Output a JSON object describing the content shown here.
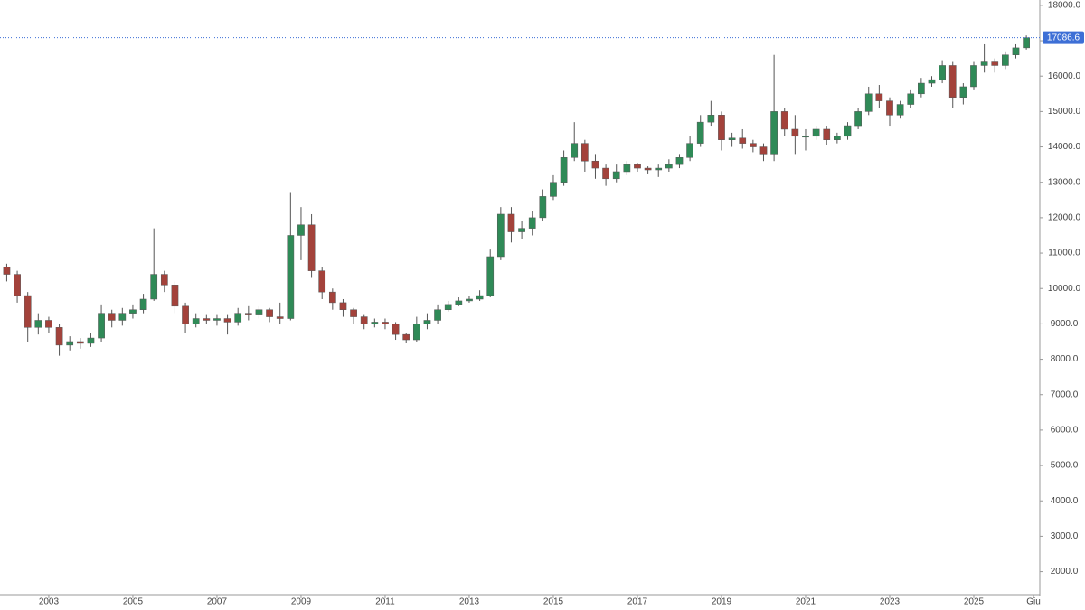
{
  "chart_data": {
    "type": "candlestick",
    "x": [
      2002,
      2002.25,
      2002.5,
      2002.75,
      2003,
      2003.25,
      2003.5,
      2003.75,
      2004,
      2004.25,
      2004.5,
      2004.75,
      2005,
      2005.25,
      2005.5,
      2005.75,
      2006,
      2006.25,
      2006.5,
      2006.75,
      2007,
      2007.25,
      2007.5,
      2007.75,
      2008,
      2008.25,
      2008.5,
      2008.75,
      2009,
      2009.25,
      2009.5,
      2009.75,
      2010,
      2010.25,
      2010.5,
      2010.75,
      2011,
      2011.25,
      2011.5,
      2011.75,
      2012,
      2012.25,
      2012.5,
      2012.75,
      2013,
      2013.25,
      2013.5,
      2013.75,
      2014,
      2014.25,
      2014.5,
      2014.75,
      2015,
      2015.25,
      2015.5,
      2015.75,
      2016,
      2016.25,
      2016.5,
      2016.75,
      2017,
      2017.25,
      2017.5,
      2017.75,
      2018,
      2018.25,
      2018.5,
      2018.75,
      2019,
      2019.25,
      2019.5,
      2019.75,
      2020,
      2020.25,
      2020.5,
      2020.75,
      2021,
      2021.25,
      2021.5,
      2021.75,
      2022,
      2022.25,
      2022.5,
      2022.75,
      2023,
      2023.25,
      2023.5,
      2023.75,
      2024,
      2024.25,
      2024.5,
      2024.75,
      2025,
      2025.25,
      2025.5,
      2025.75,
      2026,
      2026.25
    ],
    "open": [
      10600,
      10400,
      9800,
      8900,
      9100,
      8900,
      8400,
      8500,
      8450,
      8600,
      9300,
      9100,
      9300,
      9400,
      9700,
      10400,
      10100,
      9500,
      9000,
      9150,
      9100,
      9150,
      9050,
      9300,
      9250,
      9400,
      9200,
      9150,
      11500,
      11800,
      10500,
      9900,
      9600,
      9400,
      9200,
      9000,
      9050,
      9000,
      8700,
      8550,
      9000,
      9100,
      9400,
      9550,
      9650,
      9700,
      9800,
      10900,
      12100,
      11600,
      11700,
      12000,
      12600,
      13000,
      13700,
      14100,
      13600,
      13400,
      13100,
      13300,
      13500,
      13400,
      13350,
      13400,
      13500,
      13700,
      14100,
      14700,
      14900,
      14200,
      14250,
      14100,
      14000,
      13800,
      15000,
      14500,
      14300,
      14300,
      14500,
      14200,
      14300,
      14600,
      15000,
      15500,
      15300,
      14900,
      15200,
      15500,
      15800,
      15900,
      16300,
      15400,
      15700,
      16300,
      16400,
      16300,
      16600,
      16800
    ],
    "high": [
      10700,
      10500,
      9900,
      9300,
      9200,
      9000,
      8650,
      8600,
      8750,
      9550,
      9400,
      9450,
      9550,
      9850,
      11700,
      10500,
      10200,
      9600,
      9300,
      9250,
      9250,
      9250,
      9450,
      9500,
      9500,
      9450,
      9600,
      12700,
      12300,
      12100,
      10600,
      10000,
      9700,
      9450,
      9250,
      9150,
      9150,
      9050,
      8750,
      9200,
      9300,
      9550,
      9650,
      9750,
      9800,
      9950,
      11100,
      12300,
      12300,
      11900,
      12200,
      12800,
      13200,
      13900,
      14700,
      14200,
      13800,
      13500,
      13500,
      13600,
      13550,
      13450,
      13500,
      13650,
      13800,
      14300,
      14900,
      15300,
      15000,
      14400,
      14500,
      14200,
      14100,
      16600,
      15100,
      14900,
      14500,
      14600,
      14600,
      14400,
      14700,
      15100,
      15700,
      15750,
      15400,
      15300,
      15600,
      15950,
      16000,
      16450,
      16400,
      15800,
      16400,
      16900,
      16500,
      16700,
      16900,
      17150
    ],
    "low": [
      10200,
      9600,
      8500,
      8700,
      8750,
      8100,
      8250,
      8300,
      8350,
      8500,
      8900,
      8950,
      9150,
      9300,
      9650,
      9900,
      9300,
      8750,
      8900,
      9000,
      8950,
      8700,
      8950,
      9100,
      9150,
      9050,
      9000,
      9100,
      10800,
      10300,
      9700,
      9400,
      9200,
      9000,
      8850,
      8900,
      8850,
      8550,
      8450,
      8500,
      8850,
      9000,
      9350,
      9500,
      9600,
      9650,
      9750,
      10800,
      11300,
      11400,
      11500,
      11900,
      12500,
      12900,
      13600,
      13300,
      13100,
      12900,
      13000,
      13200,
      13300,
      13250,
      13150,
      13300,
      13400,
      13600,
      14000,
      14600,
      13900,
      14000,
      13950,
      13850,
      13600,
      13600,
      14300,
      13800,
      13900,
      14200,
      14050,
      14100,
      14200,
      14500,
      14900,
      15100,
      14600,
      14800,
      15100,
      15400,
      15700,
      15800,
      15100,
      15200,
      15600,
      16100,
      16100,
      16200,
      16500,
      16750
    ],
    "close": [
      10400,
      9800,
      8900,
      9100,
      8900,
      8400,
      8500,
      8450,
      8600,
      9300,
      9100,
      9300,
      9400,
      9700,
      10400,
      10100,
      9500,
      9000,
      9150,
      9100,
      9150,
      9050,
      9300,
      9250,
      9400,
      9200,
      9150,
      11500,
      11800,
      10500,
      9900,
      9600,
      9400,
      9200,
      9000,
      9050,
      9000,
      8700,
      8550,
      9000,
      9100,
      9400,
      9550,
      9650,
      9700,
      9800,
      10900,
      12100,
      11600,
      11700,
      12000,
      12600,
      13000,
      13700,
      14100,
      13600,
      13400,
      13100,
      13300,
      13500,
      13400,
      13350,
      13400,
      13500,
      13700,
      14100,
      14700,
      14900,
      14200,
      14250,
      14100,
      14000,
      13800,
      15000,
      14500,
      14300,
      14300,
      14500,
      14200,
      14300,
      14600,
      15000,
      15500,
      15300,
      14900,
      15200,
      15500,
      15800,
      15900,
      16300,
      15400,
      15700,
      16300,
      16400,
      16300,
      16600,
      16800,
      17086.6
    ],
    "xlim": [
      2001.84,
      2026.57
    ],
    "ylim": [
      1300,
      18150
    ],
    "xticks": [
      2003,
      2005,
      2007,
      2009,
      2011,
      2013,
      2015,
      2017,
      2019,
      2021,
      2023,
      2025,
      {
        "value": 2026.42,
        "label": "Giu"
      }
    ],
    "yticks": [
      {
        "value": 2000,
        "label": "2000.0"
      },
      {
        "value": 3000,
        "label": "3000.0"
      },
      {
        "value": 4000,
        "label": "4000.0"
      },
      {
        "value": 5000,
        "label": "5000.0"
      },
      {
        "value": 6000,
        "label": "6000.0"
      },
      {
        "value": 7000,
        "label": "7000.0"
      },
      {
        "value": 8000,
        "label": "8000.0"
      },
      {
        "value": 9000,
        "label": "9000.0"
      },
      {
        "value": 10000,
        "label": "10000.0"
      },
      {
        "value": 11000,
        "label": "11000.0"
      },
      {
        "value": 12000,
        "label": "12000.0"
      },
      {
        "value": 13000,
        "label": "13000.0"
      },
      {
        "value": 14000,
        "label": "14000.0"
      },
      {
        "value": 15000,
        "label": "15000.0"
      },
      {
        "value": 16000,
        "label": "16000.0"
      },
      {
        "value": 17000,
        "label": "17000.0"
      },
      {
        "value": 18000,
        "label": "18000.0"
      }
    ],
    "last_price": 17086.6,
    "last_price_color": "#3d6fd6",
    "up_color": "#2f8a57",
    "down_color": "#a3423b",
    "wick_color": "#555555",
    "grid": false
  }
}
